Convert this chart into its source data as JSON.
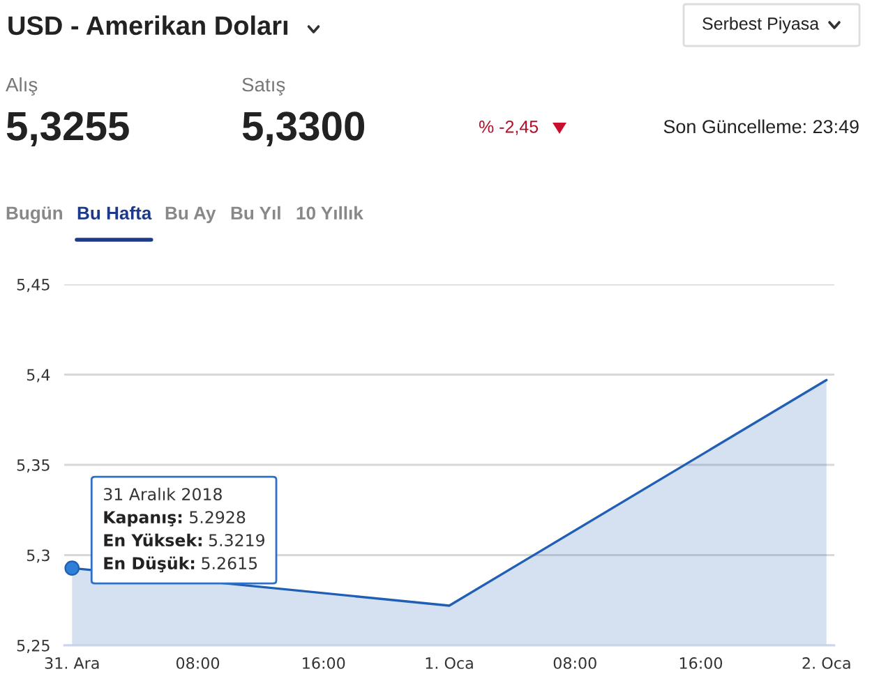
{
  "chart_data": {
    "type": "area",
    "title": "USD - Amerikan Doları",
    "x": [
      "2018-12-31",
      "2019-01-01",
      "2019-01-02"
    ],
    "series": [
      {
        "color": "#1f5fb4",
        "values": [
          5.2928,
          5.272,
          5.397
        ]
      }
    ],
    "xlim": [
      "2018-12-30T23:30",
      "2019-01-02T00:30"
    ],
    "xticks": [
      {
        "value": "2018-12-31",
        "label": "31. Ara"
      },
      {
        "value": "2018-12-31T08:00",
        "label": "08:00"
      },
      {
        "value": "2018-12-31T16:00",
        "label": "16:00"
      },
      {
        "value": "2019-01-01",
        "label": "1. Oca"
      },
      {
        "value": "2019-01-01T08:00",
        "label": "08:00"
      },
      {
        "value": "2019-01-01T16:00",
        "label": "16:00"
      },
      {
        "value": "2019-01-02",
        "label": "2. Oca"
      }
    ],
    "ylim": [
      5.25,
      5.45
    ],
    "yticks": [
      {
        "value": 5.25,
        "label": "5,25"
      },
      {
        "value": 5.3,
        "label": "5,3"
      },
      {
        "value": 5.35,
        "label": "5,35"
      },
      {
        "value": 5.4,
        "label": "5,4"
      },
      {
        "value": 5.45,
        "label": "5,45"
      }
    ],
    "grid": "y",
    "annotations": [
      "Serbest Piyasa",
      "Alış",
      "5,3255",
      "Satış",
      "5,3300",
      "% -2,45",
      "Son Güncelleme: 23:49",
      "Bugün",
      "Bu Hafta",
      "Bu Ay",
      "Bu Yıl",
      "10 Yıllık",
      {
        "text": "31 Aralık 2018\nKapanış: 5.2928\nEn Yüksek: 5.3219\nEn Düşük: 5.2615",
        "x": "2018-12-31",
        "y": 5.2928
      }
    ]
  }
}
